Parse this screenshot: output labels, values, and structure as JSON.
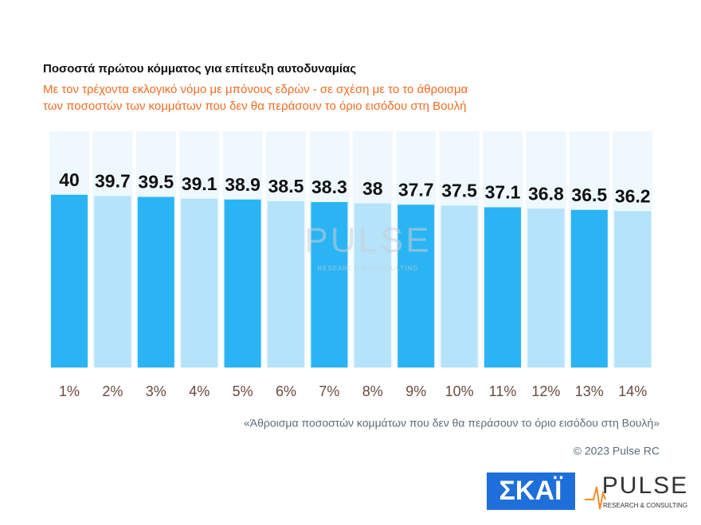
{
  "chart_data": {
    "type": "bar",
    "title": "Ποσοστά πρώτου κόμματος για επίτευξη αυτοδυναμίας",
    "subtitle": [
      "Με τον τρέχοντα εκλογικό νόμο με μπόνους εδρών - σε σχέση με το το άθροισμα",
      "των ποσοστών των κομμάτων που δεν θα περάσουν το όριο εισόδου στη Βουλή"
    ],
    "x_label": "«Άθροισμα ποσοστών κομμάτων που δεν θα περάσουν το όριο εισόδου στη Βουλή»",
    "categories": [
      "1%",
      "2%",
      "3%",
      "4%",
      "5%",
      "6%",
      "7%",
      "8%",
      "9%",
      "10%",
      "11%",
      "12%",
      "13%",
      "14%"
    ],
    "values": [
      40,
      39.7,
      39.5,
      39.1,
      38.9,
      38.5,
      38.3,
      38,
      37.7,
      37.5,
      37.1,
      36.8,
      36.5,
      36.2
    ],
    "colors": [
      "#2ab4f4",
      "#b4e3fa",
      "#2ab4f4",
      "#b4e3fa",
      "#2ab4f4",
      "#b4e3fa",
      "#2ab4f4",
      "#b4e3fa",
      "#2ab4f4",
      "#b4e3fa",
      "#2ab4f4",
      "#b4e3fa",
      "#2ab4f4",
      "#b4e3fa"
    ],
    "ylim": [
      0,
      54.7
    ],
    "copyright": "© 2023 Pulse RC",
    "logos": {
      "skai": "ΣΚΑΪ",
      "pulse": "PULSE",
      "pulse_tagline": "RESEARCH & CONSULTING"
    }
  }
}
